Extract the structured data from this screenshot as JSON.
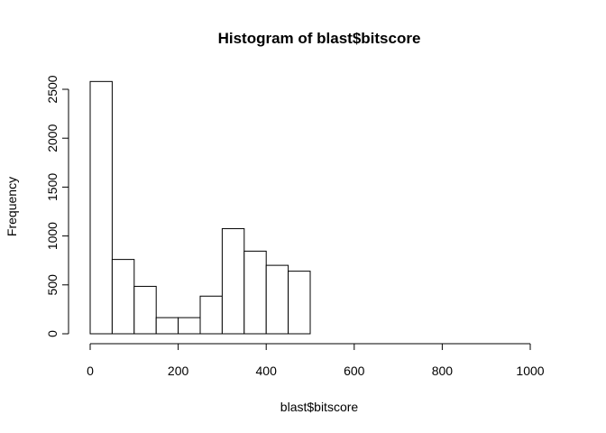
{
  "chart_data": {
    "type": "bar",
    "title": "Histogram of blast$bitscore",
    "xlabel": "blast$bitscore",
    "ylabel": "Frequency",
    "bin_edges": [
      0,
      50,
      100,
      150,
      200,
      250,
      300,
      350,
      400,
      450,
      500,
      550,
      600,
      650,
      700,
      750,
      800,
      850,
      900,
      950,
      1000,
      1050
    ],
    "values": [
      2580,
      760,
      485,
      165,
      165,
      385,
      1075,
      845,
      700,
      640,
      0,
      0,
      0,
      0,
      0,
      0,
      0,
      0,
      0,
      0,
      0
    ],
    "xlim": [
      0,
      1050
    ],
    "ylim": [
      0,
      2600
    ],
    "x_ticks": [
      0,
      200,
      400,
      600,
      800,
      1000
    ],
    "y_ticks": [
      0,
      500,
      1000,
      1500,
      2000,
      2500
    ],
    "x_tick_labels": [
      "0",
      "200",
      "400",
      "600",
      "800",
      "1000"
    ],
    "y_tick_labels": [
      "0",
      "500",
      "1000",
      "1500",
      "2000",
      "2500"
    ],
    "grid": false,
    "bar_fill": "#ffffff",
    "bar_stroke": "#000000"
  }
}
